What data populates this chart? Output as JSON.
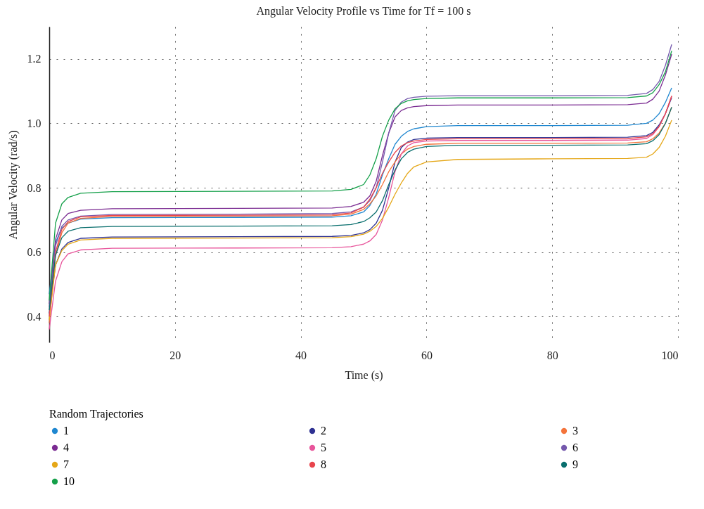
{
  "chart_data": {
    "type": "line",
    "title": "Angular Velocity Profile vs Time for Tf = 100 s",
    "xlabel": "Time (s)",
    "ylabel": "Angular Velocity (rad/s)",
    "legend_title": "Random Trajectories",
    "legend": "bottom",
    "grid": true,
    "marker": "none",
    "line_style": "solid",
    "xlim": [
      0,
      100
    ],
    "xticks": [
      0,
      20,
      40,
      60,
      80,
      100
    ],
    "ylim": [
      0.32,
      1.3
    ],
    "yticks": [
      0.4,
      0.6,
      0.8,
      {
        "value": 1.0,
        "label": "1.0"
      },
      1.2
    ],
    "x": [
      0,
      1,
      2,
      3,
      5,
      10,
      30,
      45,
      48,
      50,
      51,
      52,
      53,
      54,
      55,
      56,
      57,
      58,
      60,
      65,
      80,
      92,
      95,
      96,
      97,
      98,
      99
    ],
    "series": [
      {
        "name": "1",
        "color": "#1f87d0",
        "values": [
          0.47,
          0.63,
          0.675,
          0.69,
          0.703,
          0.707,
          0.708,
          0.709,
          0.713,
          0.725,
          0.745,
          0.78,
          0.84,
          0.89,
          0.935,
          0.96,
          0.975,
          0.983,
          0.99,
          0.993,
          0.993,
          0.994,
          1.0,
          1.01,
          1.03,
          1.065,
          1.11
        ]
      },
      {
        "name": "2",
        "color": "#2e3192",
        "values": [
          0.41,
          0.56,
          0.61,
          0.63,
          0.643,
          0.647,
          0.648,
          0.649,
          0.652,
          0.66,
          0.67,
          0.69,
          0.73,
          0.8,
          0.88,
          0.925,
          0.942,
          0.95,
          0.954,
          0.956,
          0.956,
          0.957,
          0.962,
          0.972,
          0.995,
          1.03,
          1.08
        ]
      },
      {
        "name": "3",
        "color": "#f4743b",
        "values": [
          0.38,
          0.59,
          0.66,
          0.69,
          0.705,
          0.711,
          0.712,
          0.713,
          0.718,
          0.733,
          0.75,
          0.775,
          0.81,
          0.85,
          0.88,
          0.905,
          0.92,
          0.928,
          0.935,
          0.938,
          0.938,
          0.939,
          0.943,
          0.952,
          0.97,
          1.0,
          1.05
        ]
      },
      {
        "name": "4",
        "color": "#7b2c92",
        "values": [
          0.44,
          0.64,
          0.7,
          0.72,
          0.73,
          0.735,
          0.736,
          0.737,
          0.742,
          0.755,
          0.775,
          0.82,
          0.9,
          0.97,
          1.02,
          1.04,
          1.048,
          1.052,
          1.055,
          1.057,
          1.057,
          1.058,
          1.063,
          1.075,
          1.1,
          1.15,
          1.215
        ]
      },
      {
        "name": "5",
        "color": "#e8559b",
        "values": [
          0.36,
          0.51,
          0.57,
          0.595,
          0.607,
          0.612,
          0.613,
          0.614,
          0.617,
          0.625,
          0.635,
          0.655,
          0.7,
          0.77,
          0.85,
          0.905,
          0.93,
          0.94,
          0.945,
          0.947,
          0.947,
          0.948,
          0.953,
          0.965,
          0.99,
          1.03,
          1.085
        ]
      },
      {
        "name": "6",
        "color": "#7559ad",
        "values": [
          0.43,
          0.62,
          0.68,
          0.7,
          0.712,
          0.717,
          0.718,
          0.72,
          0.725,
          0.74,
          0.76,
          0.8,
          0.88,
          0.97,
          1.04,
          1.066,
          1.077,
          1.081,
          1.084,
          1.086,
          1.086,
          1.087,
          1.093,
          1.105,
          1.13,
          1.18,
          1.245
        ]
      },
      {
        "name": "7",
        "color": "#e5a718",
        "values": [
          0.39,
          0.56,
          0.605,
          0.625,
          0.638,
          0.643,
          0.644,
          0.645,
          0.648,
          0.656,
          0.665,
          0.68,
          0.705,
          0.74,
          0.78,
          0.815,
          0.845,
          0.865,
          0.88,
          0.888,
          0.89,
          0.891,
          0.895,
          0.905,
          0.925,
          0.96,
          1.01
        ]
      },
      {
        "name": "8",
        "color": "#e8454d",
        "values": [
          0.4,
          0.6,
          0.67,
          0.695,
          0.71,
          0.714,
          0.715,
          0.716,
          0.722,
          0.74,
          0.765,
          0.8,
          0.845,
          0.88,
          0.91,
          0.93,
          0.94,
          0.945,
          0.95,
          0.952,
          0.952,
          0.953,
          0.958,
          0.968,
          0.99,
          1.03,
          1.085
        ]
      },
      {
        "name": "9",
        "color": "#0a6f6e",
        "values": [
          0.42,
          0.59,
          0.645,
          0.665,
          0.676,
          0.68,
          0.681,
          0.682,
          0.686,
          0.695,
          0.707,
          0.725,
          0.76,
          0.81,
          0.855,
          0.89,
          0.91,
          0.92,
          0.928,
          0.932,
          0.932,
          0.933,
          0.937,
          0.946,
          0.965,
          1.0,
          1.05
        ]
      },
      {
        "name": "10",
        "color": "#15a04a",
        "values": [
          0.45,
          0.69,
          0.75,
          0.77,
          0.783,
          0.788,
          0.789,
          0.79,
          0.795,
          0.81,
          0.84,
          0.89,
          0.96,
          1.01,
          1.045,
          1.062,
          1.07,
          1.074,
          1.077,
          1.079,
          1.079,
          1.08,
          1.085,
          1.095,
          1.12,
          1.16,
          1.225
        ]
      }
    ]
  }
}
